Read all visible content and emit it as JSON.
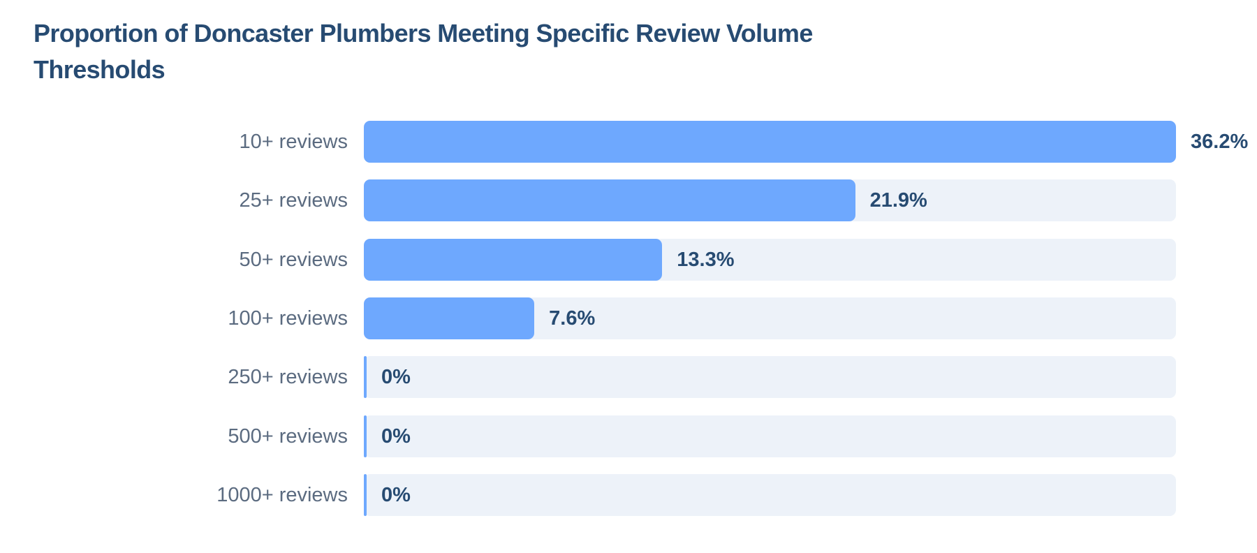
{
  "chart_data": {
    "type": "bar",
    "orientation": "horizontal",
    "title": "Proportion of Doncaster Plumbers Meeting Specific Review Volume Thresholds",
    "categories": [
      "10+ reviews",
      "25+ reviews",
      "50+ reviews",
      "100+ reviews",
      "250+ reviews",
      "500+ reviews",
      "1000+ reviews"
    ],
    "values": [
      36.2,
      21.9,
      13.3,
      7.6,
      0,
      0,
      0
    ],
    "value_labels": [
      "36.2%",
      "21.9%",
      "13.3%",
      "7.6%",
      "0%",
      "0%",
      "0%"
    ],
    "unit": "%",
    "xlim": [
      0,
      36.2
    ],
    "grid": false,
    "colors": {
      "bar": "#6ea8fe",
      "track": "#edf2f9",
      "title": "#274b72",
      "value_label": "#274b72",
      "category_label": "#5b6b80"
    }
  }
}
